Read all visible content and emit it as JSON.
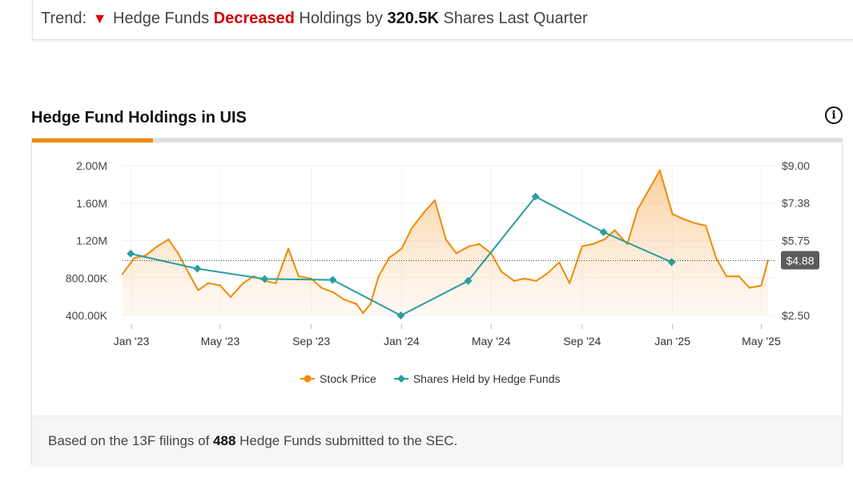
{
  "trend": {
    "prefix": "Trend:",
    "subject": "Hedge Funds",
    "direction": "Decreased",
    "middle": "Holdings by",
    "amount": "320.5K",
    "suffix": "Shares Last Quarter",
    "direction_color": "#d30000"
  },
  "section_title": "Hedge Fund Holdings in UIS",
  "info_icon": "info-icon",
  "footer": {
    "prefix": "Based on the 13F filings of",
    "count": "488",
    "suffix": "Hedge Funds submitted to the SEC."
  },
  "legend": {
    "stock_price": "Stock Price",
    "shares_held": "Shares Held by Hedge Funds"
  },
  "colors": {
    "price_line": "#f08a00",
    "holdings_line": "#2a9d9f",
    "accent_tab": "#f08a00",
    "current_badge": "#5b5b5b"
  },
  "chart_data": {
    "type": "line",
    "x_ticks": [
      "Jan '23",
      "May '23",
      "Sep '23",
      "Jan '24",
      "May '24",
      "Sep '24",
      "Jan '25",
      "May '25"
    ],
    "x_tick_dates": [
      "2023-01-01",
      "2023-05-01",
      "2023-09-01",
      "2024-01-01",
      "2024-05-01",
      "2024-09-01",
      "2025-01-01",
      "2025-05-01"
    ],
    "x_range": [
      "2022-12-20",
      "2025-05-20"
    ],
    "y_left": {
      "ticks": [
        "2.00M",
        "1.60M",
        "1.20M",
        "800.00K",
        "400.00K"
      ],
      "tick_values": [
        2000000,
        1600000,
        1200000,
        800000,
        400000
      ],
      "range": [
        400000,
        2000000
      ]
    },
    "y_right": {
      "ticks": [
        "$9.00",
        "$7.38",
        "$5.75",
        "$2.50"
      ],
      "tick_values": [
        9.0,
        7.38,
        5.75,
        2.5
      ],
      "range": [
        2.5,
        9.0
      ]
    },
    "current_price": 4.88,
    "current_price_label": "$4.88",
    "grid": true,
    "legend_position": "bottom",
    "series": [
      {
        "name": "Stock Price",
        "axis": "right",
        "style": "area",
        "x": [
          "2022-12-20",
          "2023-01-05",
          "2023-01-20",
          "2023-02-05",
          "2023-02-20",
          "2023-03-05",
          "2023-03-20",
          "2023-04-01",
          "2023-04-15",
          "2023-05-01",
          "2023-05-15",
          "2023-06-01",
          "2023-06-15",
          "2023-07-01",
          "2023-07-15",
          "2023-08-01",
          "2023-08-15",
          "2023-09-01",
          "2023-09-15",
          "2023-10-01",
          "2023-10-15",
          "2023-11-01",
          "2023-11-10",
          "2023-11-20",
          "2023-12-01",
          "2023-12-15",
          "2024-01-01",
          "2024-01-15",
          "2024-02-01",
          "2024-02-15",
          "2024-03-01",
          "2024-03-15",
          "2024-04-01",
          "2024-04-15",
          "2024-05-01",
          "2024-05-15",
          "2024-06-01",
          "2024-06-15",
          "2024-07-01",
          "2024-07-15",
          "2024-08-01",
          "2024-08-15",
          "2024-09-01",
          "2024-09-15",
          "2024-10-01",
          "2024-10-15",
          "2024-11-01",
          "2024-11-15",
          "2024-12-01",
          "2024-12-15",
          "2025-01-01",
          "2025-01-15",
          "2025-02-01",
          "2025-02-15",
          "2025-03-01",
          "2025-03-15",
          "2025-04-01",
          "2025-04-15",
          "2025-05-01",
          "2025-05-10"
        ],
        "values": [
          4.3,
          5.0,
          5.1,
          5.5,
          5.8,
          5.2,
          4.3,
          3.6,
          3.9,
          3.8,
          3.3,
          3.9,
          4.2,
          4.0,
          3.9,
          5.4,
          4.2,
          4.1,
          3.7,
          3.5,
          3.2,
          3.0,
          2.6,
          3.0,
          4.2,
          5.0,
          5.4,
          6.3,
          7.0,
          7.5,
          5.8,
          5.2,
          5.5,
          5.6,
          5.2,
          4.4,
          4.0,
          4.1,
          4.0,
          4.3,
          4.8,
          3.9,
          5.5,
          5.6,
          5.8,
          6.2,
          5.6,
          7.1,
          8.0,
          8.8,
          6.9,
          6.7,
          6.5,
          6.4,
          5.0,
          4.2,
          4.2,
          3.7,
          3.8,
          4.88
        ]
      },
      {
        "name": "Shares Held by Hedge Funds",
        "axis": "left",
        "style": "line",
        "x": [
          "2022-12-31",
          "2023-03-31",
          "2023-06-30",
          "2023-09-30",
          "2023-12-31",
          "2024-03-31",
          "2024-06-30",
          "2024-09-30",
          "2024-12-31"
        ],
        "values": [
          1060000,
          900000,
          790000,
          780000,
          400000,
          770000,
          1670000,
          1290000,
          970000
        ]
      }
    ]
  }
}
